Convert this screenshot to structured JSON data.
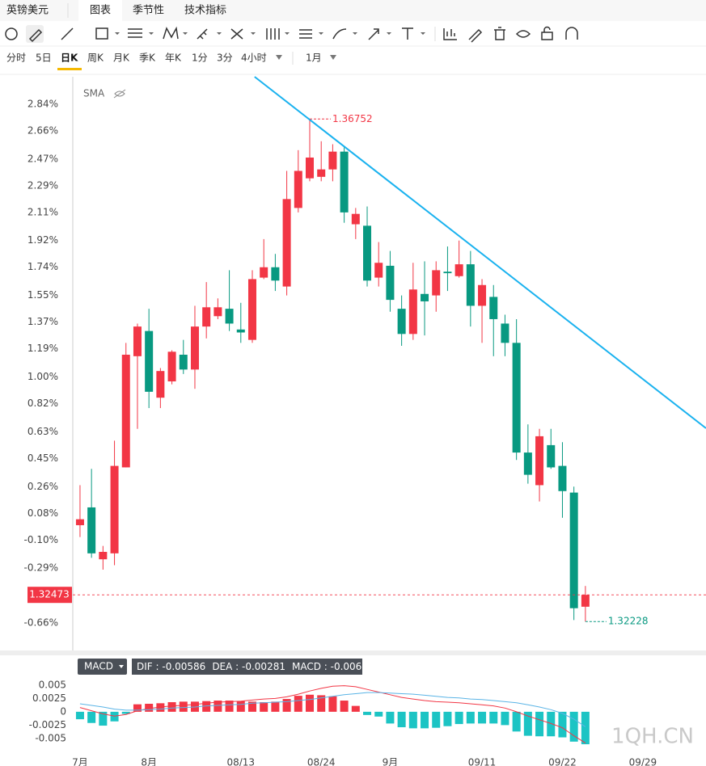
{
  "header": {
    "symbol": "英镑美元",
    "tabs": [
      "图表",
      "季节性",
      "技术指标"
    ]
  },
  "periods": [
    "分时",
    "5日",
    "日K",
    "周K",
    "月K",
    "季K",
    "年K",
    "1分",
    "3分",
    "4小时"
  ],
  "active_period": "日K",
  "range": "1月",
  "watermark": "1QH.CN",
  "chart_data": [
    {
      "type": "candlestick",
      "indicator": "SMA",
      "up_color": "#f23645",
      "down_color": "#089981",
      "open": [
        0.0,
        0.12,
        -0.23,
        -0.19,
        0.39,
        1.14,
        1.31,
        0.86,
        0.97,
        1.15,
        1.05,
        1.34,
        1.41,
        1.46,
        1.32,
        1.25,
        1.67,
        1.74,
        1.61,
        2.14,
        2.34,
        2.35,
        2.4,
        2.52,
        2.03,
        2.02,
        1.67,
        1.75,
        1.46,
        1.29,
        1.56,
        1.55,
        1.71,
        1.68,
        1.76,
        1.48,
        1.54,
        1.36,
        1.23,
        0.49,
        0.27,
        0.54,
        0.4,
        0.22,
        -0.55
      ],
      "high": [
        0.27,
        0.38,
        -0.14,
        0.57,
        1.23,
        1.36,
        1.46,
        1.06,
        1.18,
        1.25,
        1.48,
        1.64,
        1.53,
        1.72,
        1.5,
        1.72,
        1.93,
        1.83,
        2.39,
        2.53,
        2.74,
        2.59,
        2.57,
        2.55,
        2.14,
        2.15,
        1.91,
        1.85,
        1.55,
        1.77,
        1.78,
        1.78,
        1.88,
        1.92,
        1.85,
        1.66,
        1.62,
        1.42,
        1.39,
        0.68,
        0.65,
        0.65,
        0.56,
        0.26,
        -0.41
      ],
      "low": [
        -0.08,
        -0.22,
        -0.3,
        -0.27,
        0.39,
        0.65,
        0.79,
        0.79,
        0.95,
        1.02,
        0.92,
        1.26,
        1.39,
        1.31,
        1.23,
        1.23,
        1.66,
        1.58,
        1.55,
        2.11,
        2.32,
        2.32,
        2.32,
        2.04,
        1.93,
        1.61,
        1.61,
        1.44,
        1.21,
        1.25,
        1.28,
        1.44,
        1.58,
        1.67,
        1.34,
        1.23,
        1.14,
        1.14,
        0.44,
        0.28,
        0.16,
        0.38,
        0.05,
        -0.64,
        -0.65
      ],
      "close": [
        0.04,
        -0.19,
        -0.18,
        0.4,
        1.15,
        1.34,
        0.9,
        1.04,
        1.17,
        1.05,
        1.34,
        1.47,
        1.47,
        1.36,
        1.3,
        1.66,
        1.74,
        1.65,
        2.2,
        2.39,
        2.48,
        2.4,
        2.52,
        2.11,
        2.1,
        1.65,
        1.77,
        1.52,
        1.29,
        1.59,
        1.51,
        1.72,
        1.7,
        1.76,
        1.48,
        1.62,
        1.39,
        1.23,
        0.49,
        0.34,
        0.6,
        0.39,
        0.23,
        -0.56,
        -0.47
      ],
      "xlim": [
        -0.63,
        54.5
      ],
      "xticks": [
        {
          "value": 0,
          "label": "7月"
        },
        {
          "value": 6,
          "label": "8月"
        },
        {
          "value": 14,
          "label": "08/13"
        },
        {
          "value": 21,
          "label": "08/24"
        },
        {
          "value": 27,
          "label": "9月"
        },
        {
          "value": 35,
          "label": "09/11"
        },
        {
          "value": 42,
          "label": "09/22"
        },
        {
          "value": 49,
          "label": "09/29"
        }
      ],
      "ylim": [
        -0.845,
        3.025
      ],
      "yticks": [
        {
          "value": 2.84,
          "label": "2.84%"
        },
        {
          "value": 2.66,
          "label": "2.66%"
        },
        {
          "value": 2.47,
          "label": "2.47%"
        },
        {
          "value": 2.29,
          "label": "2.29%"
        },
        {
          "value": 2.11,
          "label": "2.11%"
        },
        {
          "value": 1.92,
          "label": "1.92%"
        },
        {
          "value": 1.74,
          "label": "1.74%"
        },
        {
          "value": 1.55,
          "label": "1.55%"
        },
        {
          "value": 1.37,
          "label": "1.37%"
        },
        {
          "value": 1.19,
          "label": "1.19%"
        },
        {
          "value": 1.0,
          "label": "1.00%"
        },
        {
          "value": 0.82,
          "label": "0.82%"
        },
        {
          "value": 0.63,
          "label": "0.63%"
        },
        {
          "value": 0.45,
          "label": "0.45%"
        },
        {
          "value": 0.26,
          "label": "0.26%"
        },
        {
          "value": 0.08,
          "label": "0.08%"
        },
        {
          "value": -0.1,
          "label": "-0.10%"
        },
        {
          "value": -0.29,
          "label": "-0.29%"
        },
        {
          "value": -0.66,
          "label": "-0.66%"
        }
      ],
      "trendline": {
        "x": [
          15.2,
          54.5
        ],
        "y": [
          3.025,
          0.654
        ],
        "color": "#1ab2ef"
      },
      "last_price_label": "1.32473",
      "high_label": "1.36752",
      "low_label": "1.32228"
    },
    {
      "type": "macd",
      "indicator": "MACD",
      "ylim": [
        -0.0082,
        0.0065
      ],
      "yticks": [
        0.005,
        0.0025,
        0,
        -0.0025,
        -0.005
      ],
      "series": [
        {
          "name": "DIF",
          "color": "#f23645",
          "values": [
            0.0008,
            0.0002,
            -0.0004,
            -0.0008,
            -0.0005,
            0.0002,
            0.0006,
            0.0009,
            0.0011,
            0.0012,
            0.0014,
            0.0016,
            0.0018,
            0.0019,
            0.002,
            0.0022,
            0.0024,
            0.0025,
            0.0028,
            0.0033,
            0.0039,
            0.0044,
            0.0048,
            0.0049,
            0.0047,
            0.0042,
            0.0037,
            0.0032,
            0.0027,
            0.0024,
            0.0021,
            0.0019,
            0.0018,
            0.0017,
            0.0015,
            0.0013,
            0.0011,
            0.0007,
            0,
            -0.0008,
            -0.0015,
            -0.0022,
            -0.003,
            -0.0045,
            -0.00586
          ]
        },
        {
          "name": "DEA",
          "color": "#5ab4e6",
          "values": [
            0.0015,
            0.0012,
            0.0009,
            0.0005,
            0.0003,
            0.0003,
            0.0004,
            0.0005,
            0.0007,
            0.0008,
            0.0009,
            0.0011,
            0.0012,
            0.0013,
            0.0014,
            0.0016,
            0.0017,
            0.0018,
            0.0019,
            0.0021,
            0.0023,
            0.0026,
            0.0029,
            0.0032,
            0.0034,
            0.0036,
            0.0036,
            0.0035,
            0.0034,
            0.0033,
            0.0031,
            0.0029,
            0.0027,
            0.0026,
            0.0024,
            0.0023,
            0.0021,
            0.0019,
            0.0017,
            0.0013,
            0.0009,
            0.0004,
            -0.0003,
            -0.0014,
            -0.00281
          ]
        }
      ],
      "histogram": {
        "name": "MACD",
        "up_color": "#f23645",
        "down_color": "#1cc4c4",
        "values": [
          -0.0014,
          -0.0021,
          -0.0026,
          -0.0018,
          -0.0004,
          0.0014,
          0.0015,
          0.0016,
          0.0018,
          0.0019,
          0.0019,
          0.002,
          0.0021,
          0.0021,
          0.002,
          0.0019,
          0.0018,
          0.0019,
          0.0024,
          0.003,
          0.0032,
          0.0031,
          0.0029,
          0.0021,
          0.0011,
          -0.0006,
          -0.0009,
          -0.0022,
          -0.0029,
          -0.0031,
          -0.0031,
          -0.003,
          -0.0027,
          -0.0023,
          -0.0022,
          -0.0022,
          -0.0022,
          -0.0025,
          -0.0037,
          -0.0045,
          -0.0046,
          -0.0046,
          -0.0048,
          -0.0056,
          -0.00609
        ]
      }
    }
  ]
}
